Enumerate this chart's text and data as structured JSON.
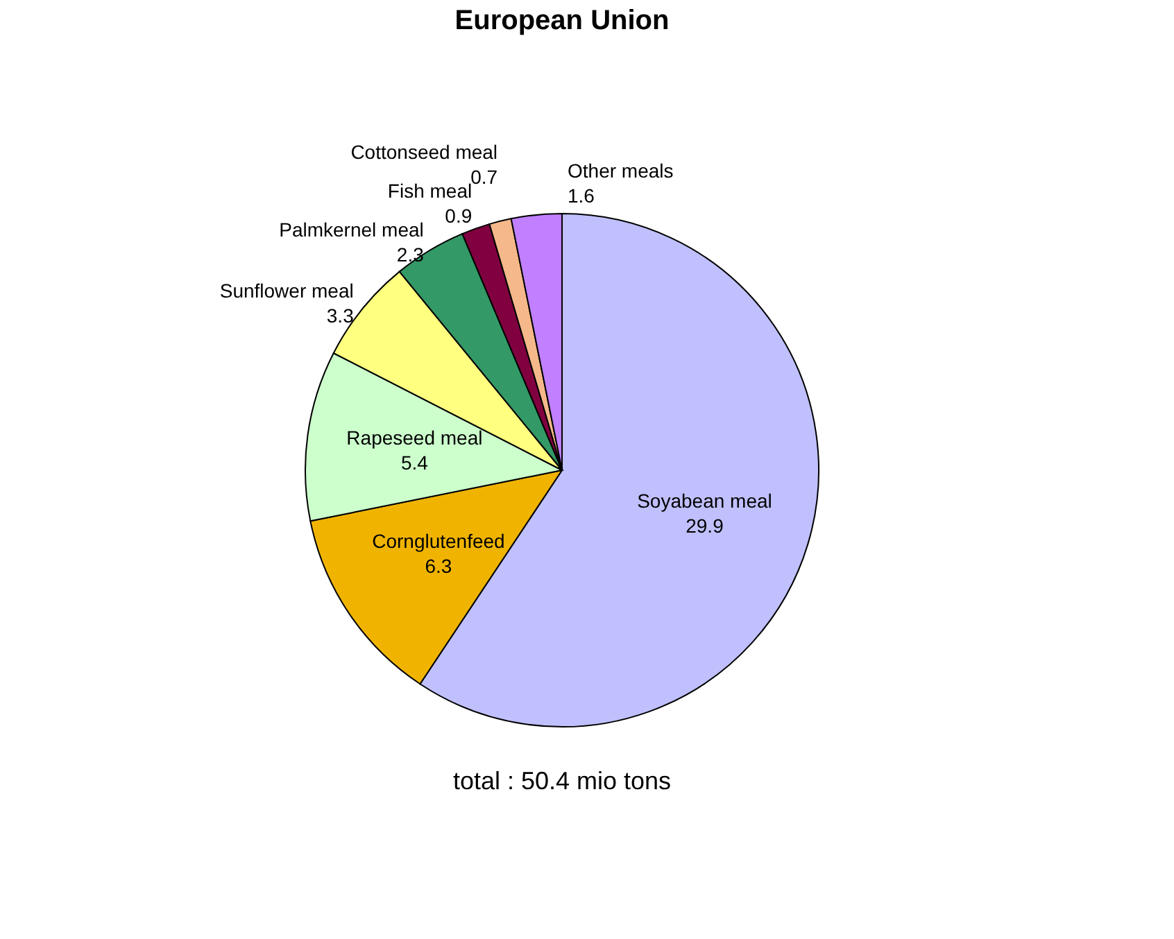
{
  "chart_data": {
    "type": "pie",
    "title": "European Union",
    "categories": [
      "Soyabean meal",
      "Cornglutenfeed",
      "Rapeseed meal",
      "Sunflower meal",
      "Palmkernel meal",
      "Fish meal",
      "Cottonseed meal",
      "Other meals"
    ],
    "values": [
      29.9,
      6.3,
      5.4,
      3.3,
      2.3,
      0.9,
      0.7,
      1.6
    ],
    "colors": [
      "#c0c0ff",
      "#f0b400",
      "#ccffcc",
      "#ffff80",
      "#339966",
      "#800040",
      "#f5b88a",
      "#c080ff"
    ],
    "data_labels": true,
    "annotations": [
      "total : 50.4 mio tons"
    ]
  }
}
